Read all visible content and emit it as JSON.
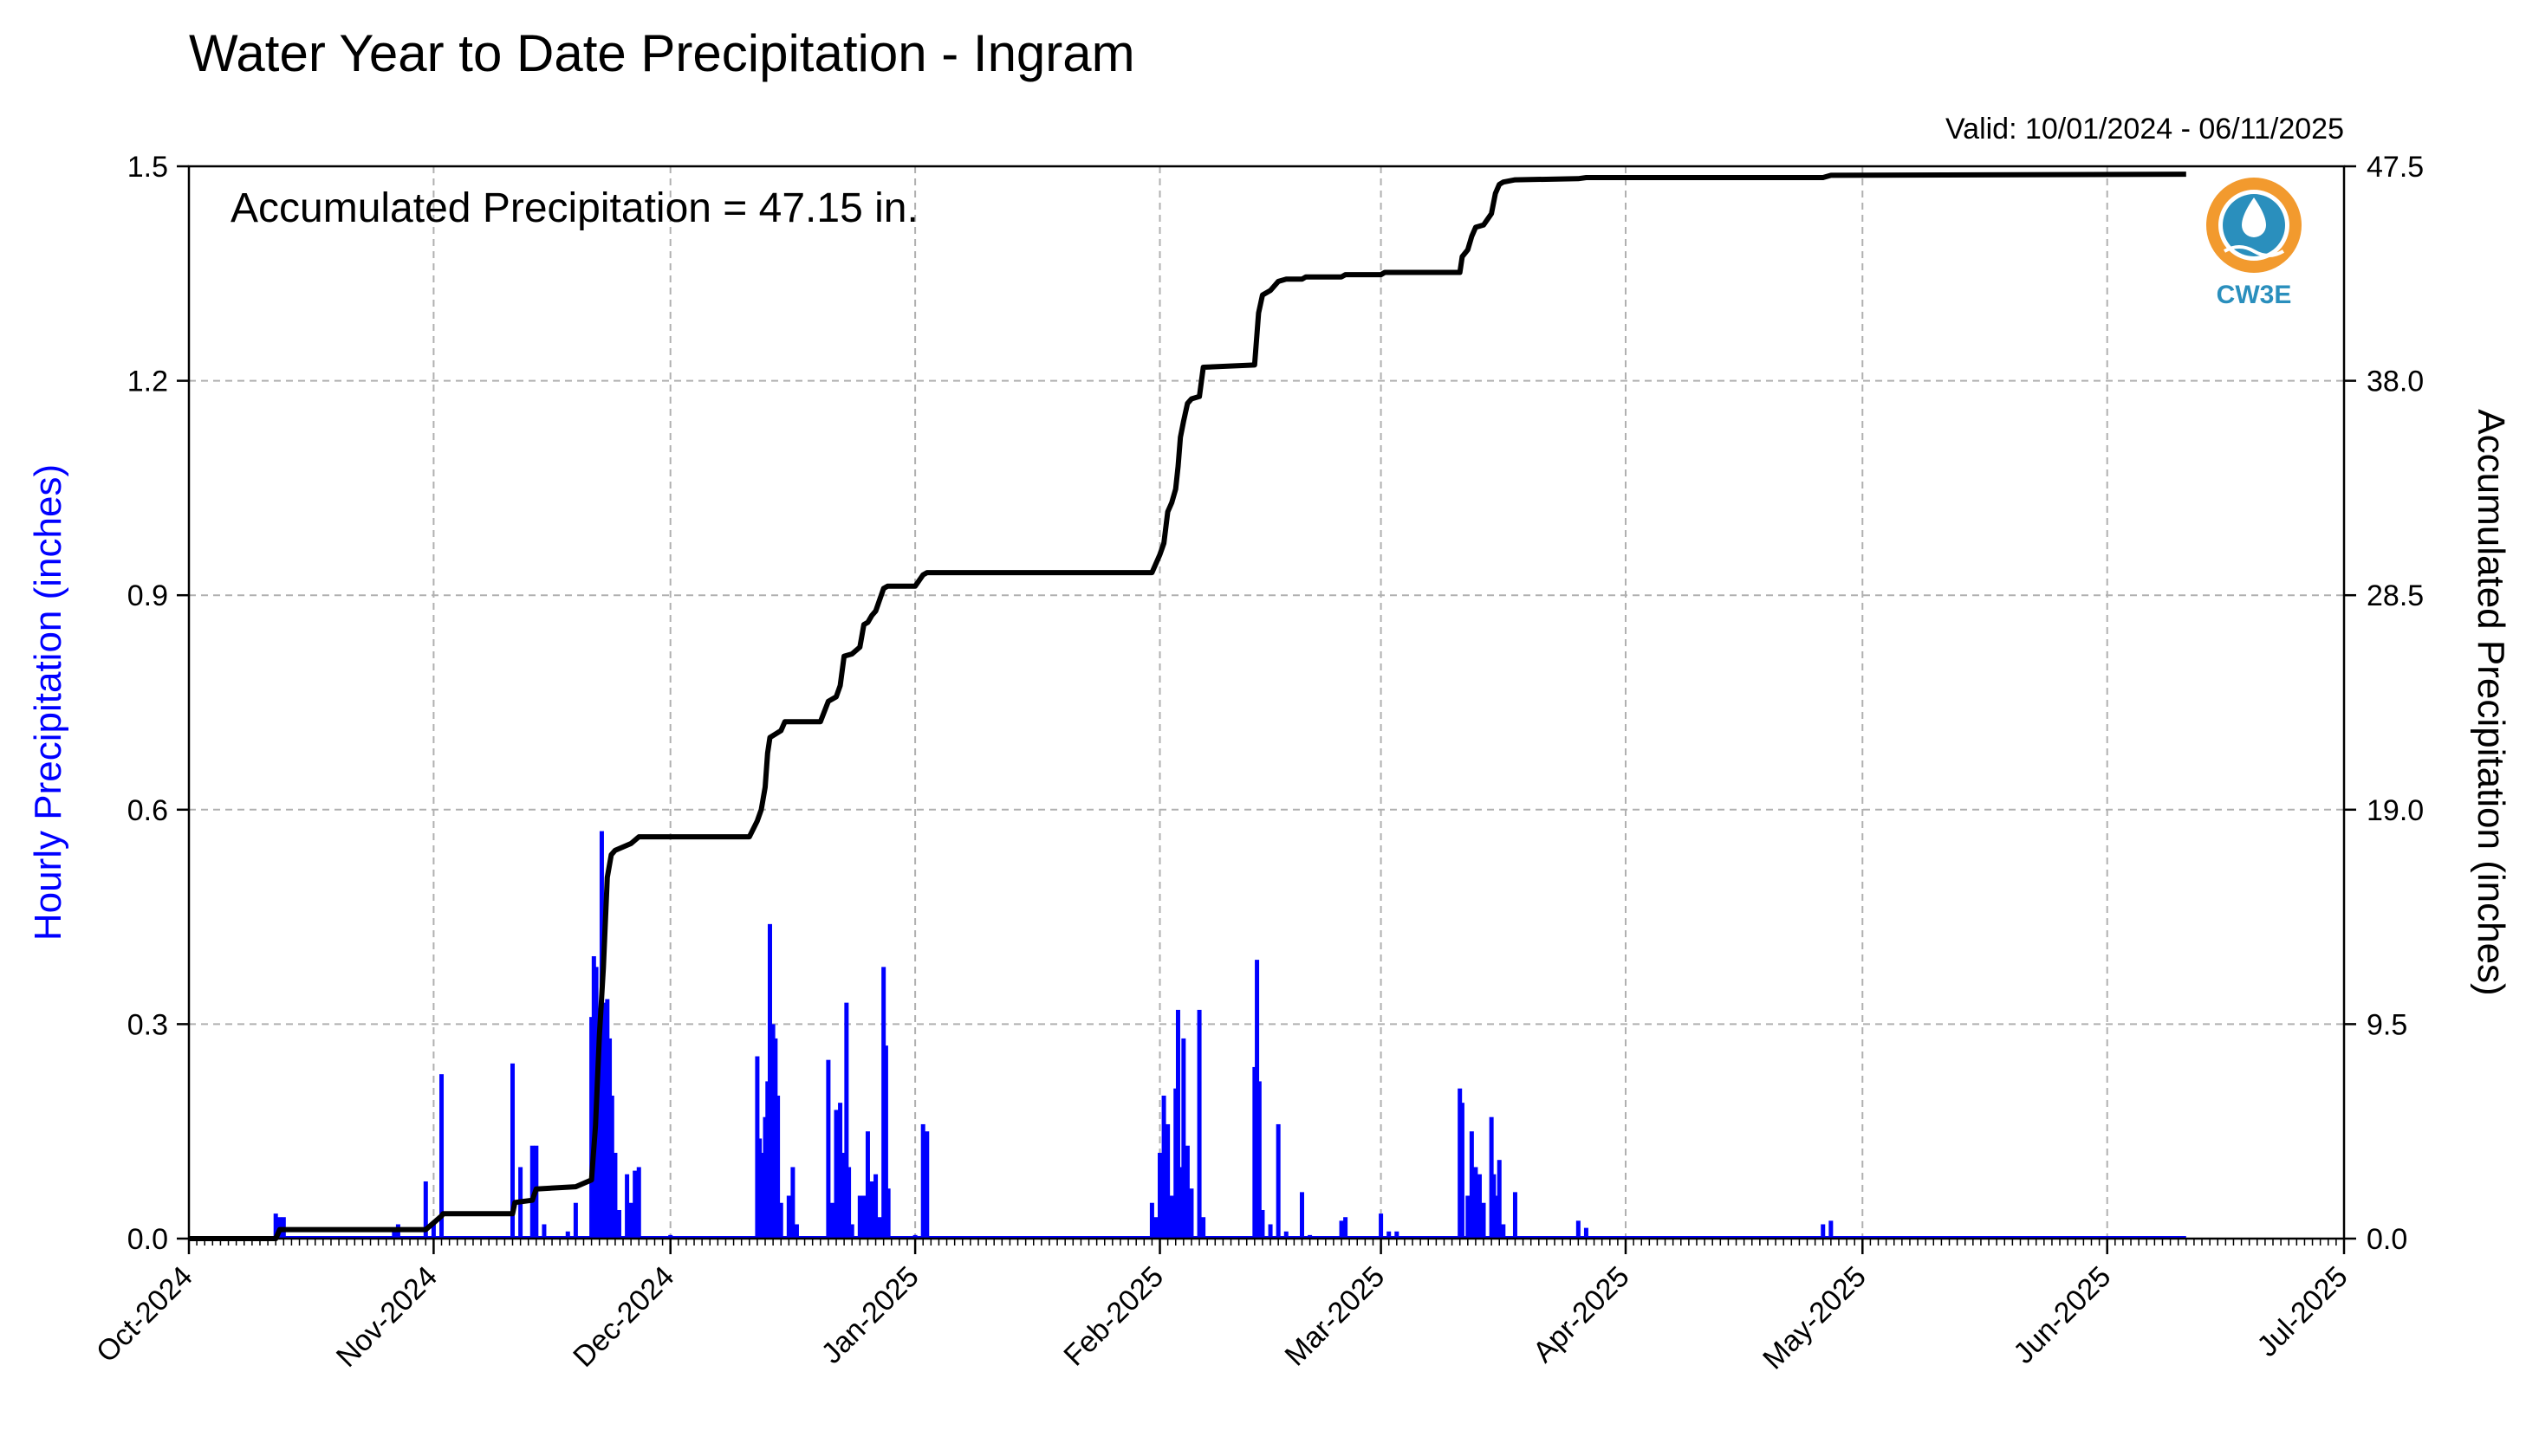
{
  "title": "Water Year to Date Precipitation - Ingram",
  "valid_label": "Valid: 10/01/2024 - 06/11/2025",
  "annotation": "Accumulated Precipitation = 47.15 in.",
  "logo": {
    "text": "CW3E",
    "icon": "cw3e-logo-icon",
    "colors": [
      "#f29a2e",
      "#2a8fbd"
    ]
  },
  "colors": {
    "hourly": "#0000ff",
    "accumulated": "#000000",
    "grid": "#b0b0b0"
  },
  "chart_data": {
    "type": "bar+line",
    "grid": true,
    "x_ticks": [
      "Oct-2024",
      "Nov-2024",
      "Dec-2024",
      "Jan-2025",
      "Feb-2025",
      "Mar-2025",
      "Apr-2025",
      "May-2025",
      "Jun-2025",
      "Jul-2025"
    ],
    "xlim": [
      "2024-10-01",
      "2025-07-01"
    ],
    "y_left": {
      "label": "Hourly Precipitation (inches)",
      "lim": [
        0,
        1.5
      ],
      "ticks": [
        "0.0",
        "0.3",
        "0.6",
        "0.9",
        "1.2",
        "1.5"
      ]
    },
    "y_right": {
      "label": "Accumulated Precipitation (inches)",
      "lim": [
        0,
        47.5
      ],
      "ticks": [
        "0.0",
        "9.5",
        "19.0",
        "28.5",
        "38.0",
        "47.5"
      ]
    },
    "series": [
      {
        "name": "Hourly Precipitation",
        "kind": "bar",
        "axis": "left",
        "points": [
          [
            "2024-10-12",
            0.035
          ],
          [
            "2024-10-12.5",
            0.03
          ],
          [
            "2024-10-13",
            0.03
          ],
          [
            "2024-10-27",
            0.015
          ],
          [
            "2024-10-27.5",
            0.02
          ],
          [
            "2024-10-31",
            0.08
          ],
          [
            "2024-11-01",
            0.02
          ],
          [
            "2024-11-02",
            0.23
          ],
          [
            "2024-11-11",
            0.245
          ],
          [
            "2024-11-12",
            0.1
          ],
          [
            "2024-11-13.5",
            0.13
          ],
          [
            "2024-11-14",
            0.13
          ],
          [
            "2024-11-15",
            0.02
          ],
          [
            "2024-11-18",
            0.01
          ],
          [
            "2024-11-19",
            0.05
          ],
          [
            "2024-11-21",
            0.31
          ],
          [
            "2024-11-21.3",
            0.395
          ],
          [
            "2024-11-21.6",
            0.38
          ],
          [
            "2024-11-22",
            0.25
          ],
          [
            "2024-11-22.3",
            0.57
          ],
          [
            "2024-11-22.6",
            0.33
          ],
          [
            "2024-11-23",
            0.335
          ],
          [
            "2024-11-23.3",
            0.28
          ],
          [
            "2024-11-23.6",
            0.2
          ],
          [
            "2024-11-24",
            0.12
          ],
          [
            "2024-11-24.5",
            0.04
          ],
          [
            "2024-11-25.5",
            0.09
          ],
          [
            "2024-11-26",
            0.05
          ],
          [
            "2024-11-26.5",
            0.095
          ],
          [
            "2024-11-27",
            0.1
          ],
          [
            "2024-12-01",
            0.005
          ],
          [
            "2024-12-12",
            0.255
          ],
          [
            "2024-12-12.3",
            0.14
          ],
          [
            "2024-12-12.6",
            0.12
          ],
          [
            "2024-12-13",
            0.17
          ],
          [
            "2024-12-13.3",
            0.22
          ],
          [
            "2024-12-13.6",
            0.44
          ],
          [
            "2024-12-14",
            0.3
          ],
          [
            "2024-12-14.3",
            0.28
          ],
          [
            "2024-12-14.6",
            0.2
          ],
          [
            "2024-12-15",
            0.05
          ],
          [
            "2024-12-16",
            0.06
          ],
          [
            "2024-12-16.5",
            0.1
          ],
          [
            "2024-12-17",
            0.02
          ],
          [
            "2024-12-21",
            0.25
          ],
          [
            "2024-12-21.5",
            0.05
          ],
          [
            "2024-12-22",
            0.18
          ],
          [
            "2024-12-22.5",
            0.19
          ],
          [
            "2024-12-23",
            0.12
          ],
          [
            "2024-12-23.3",
            0.33
          ],
          [
            "2024-12-23.6",
            0.1
          ],
          [
            "2024-12-24",
            0.02
          ],
          [
            "2024-12-25",
            0.06
          ],
          [
            "2024-12-25.5",
            0.06
          ],
          [
            "2024-12-26",
            0.15
          ],
          [
            "2024-12-26.5",
            0.08
          ],
          [
            "2024-12-27",
            0.09
          ],
          [
            "2024-12-27.5",
            0.03
          ],
          [
            "2024-12-28",
            0.38
          ],
          [
            "2024-12-28.3",
            0.27
          ],
          [
            "2024-12-28.6",
            0.07
          ],
          [
            "2025-01-01",
            0.005
          ],
          [
            "2025-01-02",
            0.16
          ],
          [
            "2025-01-02.5",
            0.15
          ],
          [
            "2025-01-31",
            0.05
          ],
          [
            "2025-01-31.5",
            0.03
          ],
          [
            "2025-02-01",
            0.12
          ],
          [
            "2025-02-01.5",
            0.2
          ],
          [
            "2025-02-02",
            0.16
          ],
          [
            "2025-02-02.5",
            0.06
          ],
          [
            "2025-02-03",
            0.21
          ],
          [
            "2025-02-03.3",
            0.32
          ],
          [
            "2025-02-03.6",
            0.1
          ],
          [
            "2025-02-04",
            0.28
          ],
          [
            "2025-02-04.5",
            0.13
          ],
          [
            "2025-02-05",
            0.07
          ],
          [
            "2025-02-06",
            0.32
          ],
          [
            "2025-02-06.5",
            0.03
          ],
          [
            "2025-02-13",
            0.24
          ],
          [
            "2025-02-13.3",
            0.39
          ],
          [
            "2025-02-13.6",
            0.22
          ],
          [
            "2025-02-14",
            0.04
          ],
          [
            "2025-02-15",
            0.02
          ],
          [
            "2025-02-16",
            0.16
          ],
          [
            "2025-02-17",
            0.01
          ],
          [
            "2025-02-19",
            0.065
          ],
          [
            "2025-02-20",
            0.005
          ],
          [
            "2025-02-24",
            0.025
          ],
          [
            "2025-02-24.5",
            0.03
          ],
          [
            "2025-03-01",
            0.035
          ],
          [
            "2025-03-02",
            0.01
          ],
          [
            "2025-03-03",
            0.01
          ],
          [
            "2025-03-11",
            0.21
          ],
          [
            "2025-03-11.3",
            0.19
          ],
          [
            "2025-03-12",
            0.06
          ],
          [
            "2025-03-12.5",
            0.15
          ],
          [
            "2025-03-13",
            0.1
          ],
          [
            "2025-03-13.5",
            0.09
          ],
          [
            "2025-03-14",
            0.05
          ],
          [
            "2025-03-15",
            0.17
          ],
          [
            "2025-03-15.3",
            0.09
          ],
          [
            "2025-03-15.6",
            0.06
          ],
          [
            "2025-03-16",
            0.11
          ],
          [
            "2025-03-16.5",
            0.02
          ],
          [
            "2025-03-18",
            0.065
          ],
          [
            "2025-03-26",
            0.025
          ],
          [
            "2025-03-27",
            0.015
          ],
          [
            "2025-04-26",
            0.02
          ],
          [
            "2025-04-27",
            0.025
          ]
        ]
      },
      {
        "name": "Accumulated Precipitation",
        "kind": "line",
        "axis": "right",
        "points": [
          [
            "2024-10-01",
            0.0
          ],
          [
            "2024-10-12",
            0.0
          ],
          [
            "2024-10-12.5",
            0.4
          ],
          [
            "2024-10-31",
            0.4
          ],
          [
            "2024-11-01",
            0.7
          ],
          [
            "2024-11-02",
            1.0
          ],
          [
            "2024-11-02.2",
            1.1
          ],
          [
            "2024-11-11",
            1.1
          ],
          [
            "2024-11-11.3",
            1.6
          ],
          [
            "2024-11-13.5",
            1.7
          ],
          [
            "2024-11-14",
            2.2
          ],
          [
            "2024-11-19",
            2.3
          ],
          [
            "2024-11-21",
            2.6
          ],
          [
            "2024-11-21.5",
            5.0
          ],
          [
            "2024-11-22",
            9.0
          ],
          [
            "2024-11-22.5",
            12.0
          ],
          [
            "2024-11-23",
            16.0
          ],
          [
            "2024-11-23.5",
            17.0
          ],
          [
            "2024-11-24",
            17.2
          ],
          [
            "2024-11-26",
            17.5
          ],
          [
            "2024-11-27",
            17.8
          ],
          [
            "2024-12-11",
            17.8
          ],
          [
            "2024-12-12",
            18.5
          ],
          [
            "2024-12-12.5",
            19.0
          ],
          [
            "2024-12-13",
            20.0
          ],
          [
            "2024-12-13.3",
            21.5
          ],
          [
            "2024-12-13.6",
            22.2
          ],
          [
            "2024-12-15",
            22.5
          ],
          [
            "2024-12-15.5",
            22.9
          ],
          [
            "2024-12-20",
            22.9
          ],
          [
            "2024-12-21",
            23.8
          ],
          [
            "2024-12-22",
            24.0
          ],
          [
            "2024-12-22.5",
            24.5
          ],
          [
            "2024-12-23",
            25.8
          ],
          [
            "2024-12-24",
            25.9
          ],
          [
            "2024-12-25",
            26.2
          ],
          [
            "2024-12-25.5",
            27.2
          ],
          [
            "2024-12-26",
            27.3
          ],
          [
            "2024-12-26.5",
            27.6
          ],
          [
            "2024-12-27",
            27.8
          ],
          [
            "2024-12-28",
            28.8
          ],
          [
            "2024-12-28.5",
            28.9
          ],
          [
            "2025-01-01",
            28.9
          ],
          [
            "2025-01-02",
            29.4
          ],
          [
            "2025-01-02.5",
            29.5
          ],
          [
            "2025-01-31",
            29.5
          ],
          [
            "2025-02-01",
            30.3
          ],
          [
            "2025-02-01.5",
            30.8
          ],
          [
            "2025-02-02",
            32.2
          ],
          [
            "2025-02-02.5",
            32.6
          ],
          [
            "2025-02-03",
            33.2
          ],
          [
            "2025-02-03.3",
            34.2
          ],
          [
            "2025-02-03.6",
            35.5
          ],
          [
            "2025-02-04",
            36.2
          ],
          [
            "2025-02-04.5",
            37.0
          ],
          [
            "2025-02-05",
            37.2
          ],
          [
            "2025-02-06",
            37.3
          ],
          [
            "2025-02-06.5",
            38.6
          ],
          [
            "2025-02-13",
            38.7
          ],
          [
            "2025-02-13.5",
            41.0
          ],
          [
            "2025-02-14",
            41.8
          ],
          [
            "2025-02-15",
            42.0
          ],
          [
            "2025-02-16",
            42.4
          ],
          [
            "2025-02-17",
            42.5
          ],
          [
            "2025-02-19",
            42.5
          ],
          [
            "2025-02-19.5",
            42.6
          ],
          [
            "2025-02-24",
            42.6
          ],
          [
            "2025-02-24.5",
            42.7
          ],
          [
            "2025-03-01",
            42.7
          ],
          [
            "2025-03-01.5",
            42.8
          ],
          [
            "2025-03-11",
            42.8
          ],
          [
            "2025-03-11.3",
            43.5
          ],
          [
            "2025-03-12",
            43.8
          ],
          [
            "2025-03-12.5",
            44.4
          ],
          [
            "2025-03-13",
            44.8
          ],
          [
            "2025-03-14",
            44.9
          ],
          [
            "2025-03-15",
            45.4
          ],
          [
            "2025-03-15.5",
            46.3
          ],
          [
            "2025-03-16",
            46.7
          ],
          [
            "2025-03-16.5",
            46.8
          ],
          [
            "2025-03-18",
            46.9
          ],
          [
            "2025-03-26",
            46.95
          ],
          [
            "2025-03-27",
            47.0
          ],
          [
            "2025-04-26",
            47.0
          ],
          [
            "2025-04-27",
            47.1
          ],
          [
            "2025-06-11",
            47.15
          ]
        ]
      }
    ]
  }
}
